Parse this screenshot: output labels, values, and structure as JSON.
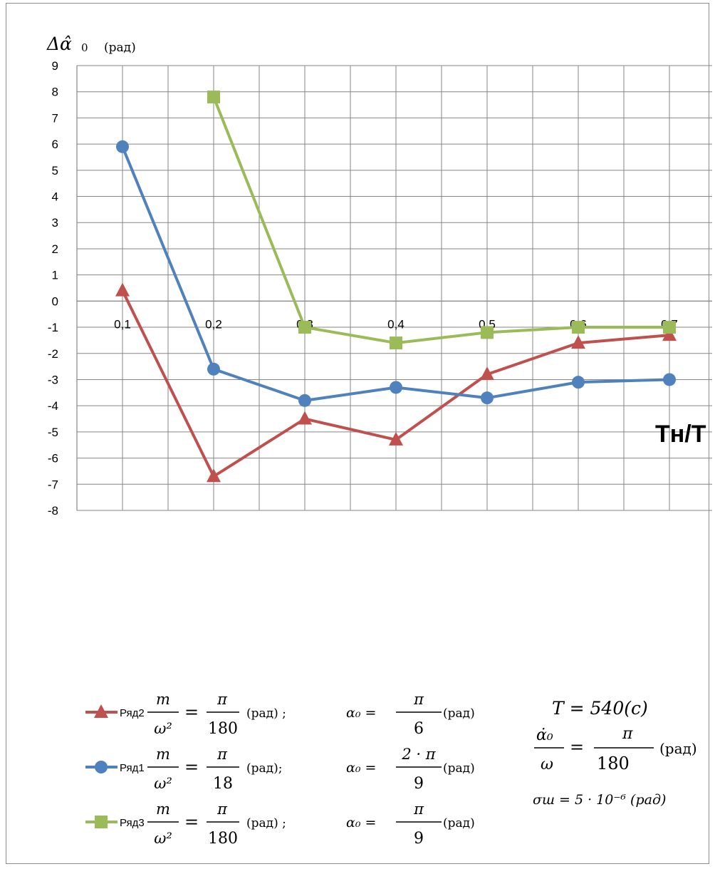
{
  "chart_data": {
    "type": "line",
    "x_categories": [
      "0,1",
      "0,2",
      "0,3",
      "0,4",
      "0,5",
      "0,6",
      "0,7"
    ],
    "x_values": [
      0.1,
      0.2,
      0.3,
      0.4,
      0.5,
      0.6,
      0.7
    ],
    "ylim": [
      -8,
      9
    ],
    "y_ticks": [
      "9",
      "8",
      "7",
      "6",
      "5",
      "4",
      "3",
      "2",
      "1",
      "0",
      "-1",
      "-2",
      "-3",
      "-4",
      "-5",
      "-6",
      "-7",
      "-8"
    ],
    "grid": true,
    "ylabel": {
      "main": "Δα̂",
      "sub": "0",
      "unit": "(рад)"
    },
    "xlabel": "Tн/T",
    "legend_position": "bottom",
    "series": [
      {
        "name": "Ряд2",
        "color": "#c0504d",
        "marker": "triangle",
        "values": [
          0.4,
          -6.7,
          -4.5,
          -5.3,
          -2.8,
          -1.6,
          -1.3
        ],
        "legend_formula": {
          "m_frac_num": "m",
          "m_frac_den": "ω²",
          "eq1": "=",
          "pi_num": "π",
          "pi_den": "180",
          "unit1": "(рад) ;",
          "alpha": "α₀ =",
          "a_num": "π",
          "a_den": "6",
          "unit2": "(рад)"
        }
      },
      {
        "name": "Ряд1",
        "color": "#4f81bd",
        "marker": "circle",
        "values": [
          5.9,
          -2.6,
          -3.8,
          -3.3,
          -3.7,
          -3.1,
          -3.0
        ],
        "legend_formula": {
          "m_frac_num": "m",
          "m_frac_den": "ω²",
          "eq1": "=",
          "pi_num": "π",
          "pi_den": "18",
          "unit1": "(рад);",
          "alpha": "α₀ =",
          "a_num": "2 · π",
          "a_den": "9",
          "unit2": "(рад)"
        }
      },
      {
        "name": "Ряд3",
        "color": "#9bbb59",
        "marker": "square",
        "values": [
          null,
          7.8,
          -1.0,
          -1.6,
          -1.2,
          -1.0,
          -1.0
        ],
        "legend_formula": {
          "m_frac_num": "m",
          "m_frac_den": "ω²",
          "eq1": "=",
          "pi_num": "π",
          "pi_den": "180",
          "unit1": "(рад) ;",
          "alpha": "α₀ =",
          "a_num": "π",
          "a_den": "9",
          "unit2": "(рад)"
        }
      }
    ],
    "annotations": {
      "period": "T = 540(c)",
      "ratio_num": "α̇₀",
      "ratio_den": "ω",
      "ratio_eq": "=",
      "ratio_pi": "π",
      "ratio_180": "180",
      "ratio_unit": "(рад)",
      "sigma": "σш = 5 · 10⁻⁶ (рад)"
    }
  }
}
